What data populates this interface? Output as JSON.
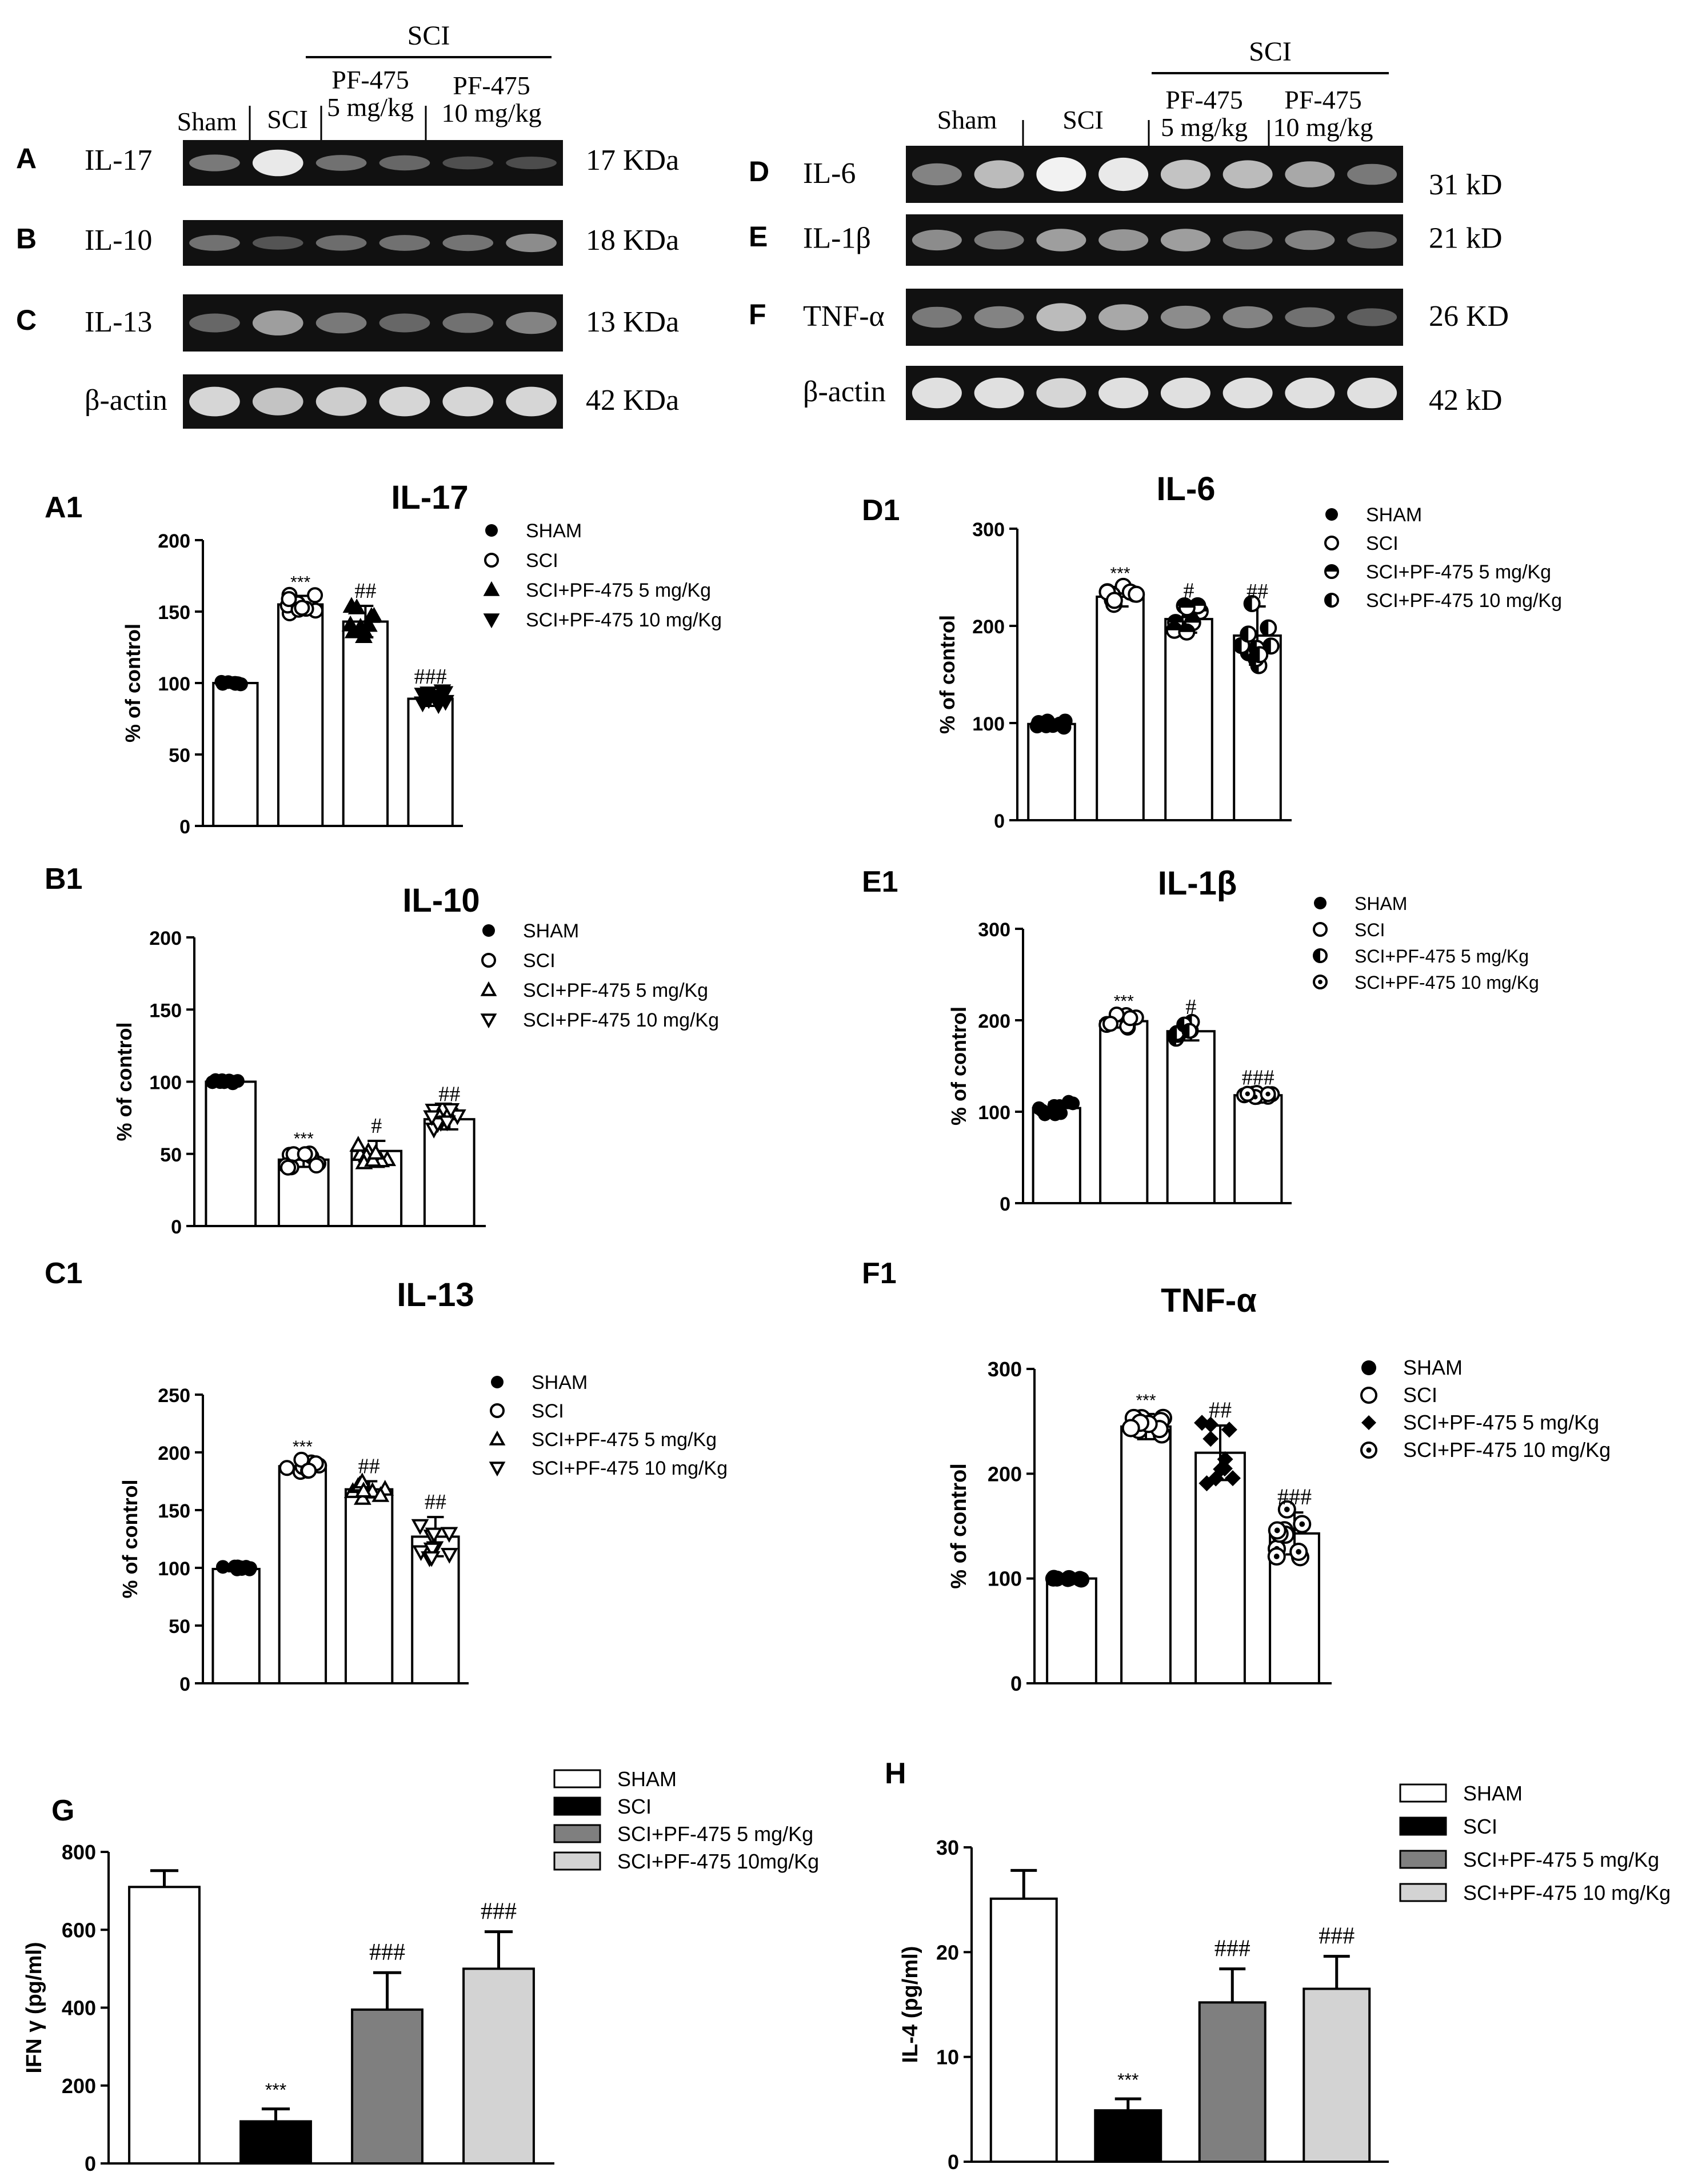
{
  "western_left": {
    "sci_label": "SCI",
    "lane_groups": [
      "Sham",
      "SCI",
      "PF-475\n5 mg/kg",
      "PF-475\n10 mg/kg"
    ],
    "rows": [
      {
        "panel": "A",
        "protein": "IL-17",
        "size": "17 KDa",
        "bands": [
          0.35,
          0.95,
          0.3,
          0.25,
          0.12,
          0.1
        ]
      },
      {
        "panel": "B",
        "protein": "IL-10",
        "size": "18 KDa",
        "bands": [
          0.3,
          0.15,
          0.28,
          0.3,
          0.32,
          0.45
        ]
      },
      {
        "panel": "C",
        "protein": "IL-13",
        "size": "13 KDa",
        "bands": [
          0.25,
          0.55,
          0.35,
          0.25,
          0.3,
          0.4
        ]
      },
      {
        "panel": "",
        "protein": "β-actin",
        "size": "42 KDa",
        "bands": [
          0.85,
          0.75,
          0.8,
          0.85,
          0.85,
          0.85
        ]
      }
    ]
  },
  "western_right": {
    "sci_label": "SCI",
    "lane_groups": [
      "Sham",
      "SCI",
      "PF-475\n5 mg/kg",
      "PF-475\n10 mg/kg"
    ],
    "rows": [
      {
        "panel": "D",
        "protein": "IL-6",
        "size": "31 kD",
        "bands": [
          0.4,
          0.7,
          1.0,
          0.95,
          0.75,
          0.7,
          0.6,
          0.35
        ]
      },
      {
        "panel": "E",
        "protein": "IL-1β",
        "size": "21 kD",
        "bands": [
          0.45,
          0.35,
          0.55,
          0.5,
          0.55,
          0.35,
          0.4,
          0.25
        ]
      },
      {
        "panel": "F",
        "protein": "TNF-α",
        "size": "26 KD",
        "bands": [
          0.35,
          0.4,
          0.7,
          0.6,
          0.45,
          0.4,
          0.3,
          0.2
        ]
      },
      {
        "panel": "",
        "protein": "β-actin",
        "size": "42 kD",
        "bands": [
          0.9,
          0.9,
          0.85,
          0.9,
          0.9,
          0.9,
          0.9,
          0.9
        ]
      }
    ]
  },
  "chart_data": [
    {
      "panel": "A1",
      "title": "IL-17",
      "type": "bar",
      "ylabel": "% of control",
      "ylim": [
        0,
        200
      ],
      "yticks": [
        0,
        50,
        100,
        150,
        200
      ],
      "legend": [
        "SHAM",
        "SCI",
        "SCI+PF-475 5 mg/Kg",
        "SCI+PF-475 10 mg/Kg"
      ],
      "markers": [
        "filled-circle",
        "open-circle",
        "filled-triangle-up",
        "filled-triangle-down"
      ],
      "values": [
        100,
        155,
        143,
        89
      ],
      "errors": [
        1,
        6,
        11,
        5
      ],
      "annotations": [
        "",
        "***",
        "##",
        "###"
      ]
    },
    {
      "panel": "B1",
      "title": "IL-10",
      "type": "bar",
      "ylabel": "% of control",
      "ylim": [
        0,
        200
      ],
      "yticks": [
        0,
        50,
        100,
        150,
        200
      ],
      "legend": [
        "SHAM",
        "SCI",
        "SCI+PF-475 5 mg/Kg",
        "SCI+PF-475 10 mg/Kg"
      ],
      "markers": [
        "filled-circle",
        "open-circle",
        "open-triangle-up",
        "open-triangle-down"
      ],
      "values": [
        100,
        46,
        52,
        74
      ],
      "errors": [
        1,
        5,
        7,
        7
      ],
      "annotations": [
        "",
        "***",
        "#",
        "##"
      ]
    },
    {
      "panel": "C1",
      "title": "IL-13",
      "type": "bar",
      "ylabel": "% of control",
      "ylim": [
        0,
        250
      ],
      "yticks": [
        0,
        50,
        100,
        150,
        200,
        250
      ],
      "legend": [
        "SHAM",
        "SCI",
        "SCI+PF-475 5 mg/Kg",
        "SCI+PF-475 10 mg/Kg"
      ],
      "markers": [
        "filled-circle",
        "open-circle",
        "open-triangle-up",
        "open-triangle-down"
      ],
      "values": [
        99,
        188,
        168,
        127
      ],
      "errors": [
        2,
        5,
        7,
        17
      ],
      "annotations": [
        "",
        "***",
        "##",
        "##"
      ]
    },
    {
      "panel": "D1",
      "title": "IL-6",
      "type": "bar",
      "ylabel": "% of control",
      "ylim": [
        0,
        300
      ],
      "yticks": [
        0,
        100,
        200,
        300
      ],
      "legend": [
        "SHAM",
        "SCI",
        "SCI+PF-475 5 mg/Kg",
        "SCI+PF-475 10 mg/Kg"
      ],
      "markers": [
        "filled-circle",
        "open-circle",
        "half-top-circle",
        "half-left-circle"
      ],
      "values": [
        99,
        230,
        207,
        190
      ],
      "errors": [
        3,
        10,
        14,
        30
      ],
      "annotations": [
        "",
        "***",
        "#",
        "##"
      ]
    },
    {
      "panel": "E1",
      "title": "IL-1β",
      "type": "bar",
      "ylabel": "% of control",
      "ylim": [
        0,
        300
      ],
      "yticks": [
        0,
        100,
        200,
        300
      ],
      "legend": [
        "SHAM",
        "SCI",
        "SCI+PF-475 5 mg/Kg",
        "SCI+PF-475 10 mg/Kg"
      ],
      "markers": [
        "filled-circle",
        "open-circle",
        "half-left-circle",
        "dot-circle"
      ],
      "values": [
        104,
        199,
        188,
        118
      ],
      "errors": [
        6,
        7,
        10,
        3
      ],
      "annotations": [
        "",
        "***",
        "#",
        "###"
      ]
    },
    {
      "panel": "F1",
      "title": "TNF-α",
      "type": "bar",
      "ylabel": "% of control",
      "ylim": [
        0,
        300
      ],
      "yticks": [
        0,
        100,
        200,
        300
      ],
      "legend": [
        "SHAM",
        "SCI",
        "SCI+PF-475 5 mg/Kg",
        "SCI+PF-475 10 mg/Kg"
      ],
      "markers": [
        "filled-circle",
        "open-circle",
        "filled-diamond",
        "dot-circle"
      ],
      "values": [
        100,
        245,
        220,
        143
      ],
      "errors": [
        1,
        12,
        26,
        20
      ],
      "annotations": [
        "",
        "***",
        "##",
        "###"
      ]
    },
    {
      "panel": "G",
      "title": "",
      "type": "bar",
      "ylabel": "IFN γ (pg/ml)",
      "ylim": [
        0,
        800
      ],
      "yticks": [
        0,
        200,
        400,
        600,
        800
      ],
      "legend": [
        "SHAM",
        "SCI",
        "SCI+PF-475 5 mg/Kg",
        "SCI+PF-475 10mg/Kg"
      ],
      "colors": [
        "#ffffff",
        "#000000",
        "#7f7f7f",
        "#d3d3d3"
      ],
      "values": [
        710,
        108,
        395,
        500
      ],
      "errors": [
        42,
        32,
        95,
        95
      ],
      "annotations": [
        "",
        "***",
        "###",
        "###"
      ]
    },
    {
      "panel": "H",
      "title": "",
      "type": "bar",
      "ylabel": "IL-4 (pg/ml)",
      "ylim": [
        0,
        30
      ],
      "yticks": [
        0,
        10,
        20,
        30
      ],
      "legend": [
        "SHAM",
        "SCI",
        "SCI+PF-475 5 mg/Kg",
        "SCI+PF-475 10 mg/Kg"
      ],
      "colors": [
        "#ffffff",
        "#000000",
        "#7f7f7f",
        "#d3d3d3"
      ],
      "values": [
        25.1,
        4.9,
        15.2,
        16.5
      ],
      "errors": [
        2.7,
        1.1,
        3.2,
        3.1
      ],
      "annotations": [
        "",
        "***",
        "###",
        "###"
      ]
    }
  ]
}
